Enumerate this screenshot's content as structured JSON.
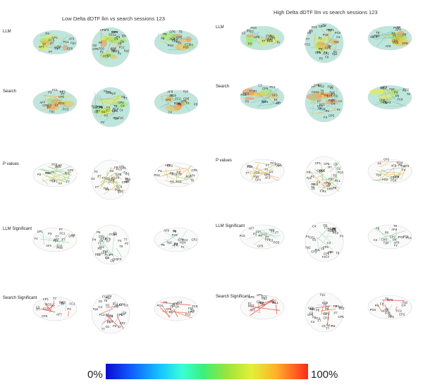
{
  "panels": [
    {
      "title": "Low Delta dDTF llm vs search sessions 123"
    },
    {
      "title": "High Delta dDTF llm vs search sessions 123"
    }
  ],
  "rows": [
    {
      "label": "LLM",
      "style": "filled"
    },
    {
      "label": "Search",
      "style": "filled"
    },
    {
      "label": "P values",
      "style": "lines"
    },
    {
      "label": "LLM Significant",
      "style": "sparse"
    },
    {
      "label": "Search Significant",
      "style": "sparse-red"
    }
  ],
  "views": [
    "left",
    "top",
    "right"
  ],
  "electrodes": {
    "left": [
      "Fz",
      "FC1",
      "C3",
      "CP1",
      "CP5",
      "FC5",
      "F7",
      "T7",
      "AF3",
      "AF7",
      "P7",
      "P3",
      "PO3",
      "Fp1"
    ],
    "top": [
      "Fp1",
      "Fp2",
      "F7",
      "F3",
      "Fz",
      "F4",
      "F8",
      "FC5",
      "FC1",
      "FC2",
      "FC6",
      "T7",
      "C3",
      "Cz",
      "C4",
      "T8",
      "CP5",
      "CP1",
      "CP2",
      "CP6",
      "P7",
      "P3",
      "Pz",
      "P4",
      "P8",
      "O1",
      "Oz",
      "O2"
    ],
    "right": [
      "Fz",
      "FC2",
      "C4",
      "CP2",
      "CP6",
      "FC6",
      "F8",
      "T8",
      "AF4",
      "AF8",
      "P8",
      "P4",
      "PO4",
      "Fp2"
    ]
  },
  "colorbar": {
    "min_label": "0%",
    "max_label": "100%",
    "colors": [
      "#0a0ad4",
      "#1060ff",
      "#16c6ff",
      "#39ffd5",
      "#3af07a",
      "#9ce43a",
      "#e4f035",
      "#ffb22a",
      "#ff2a1a"
    ]
  }
}
